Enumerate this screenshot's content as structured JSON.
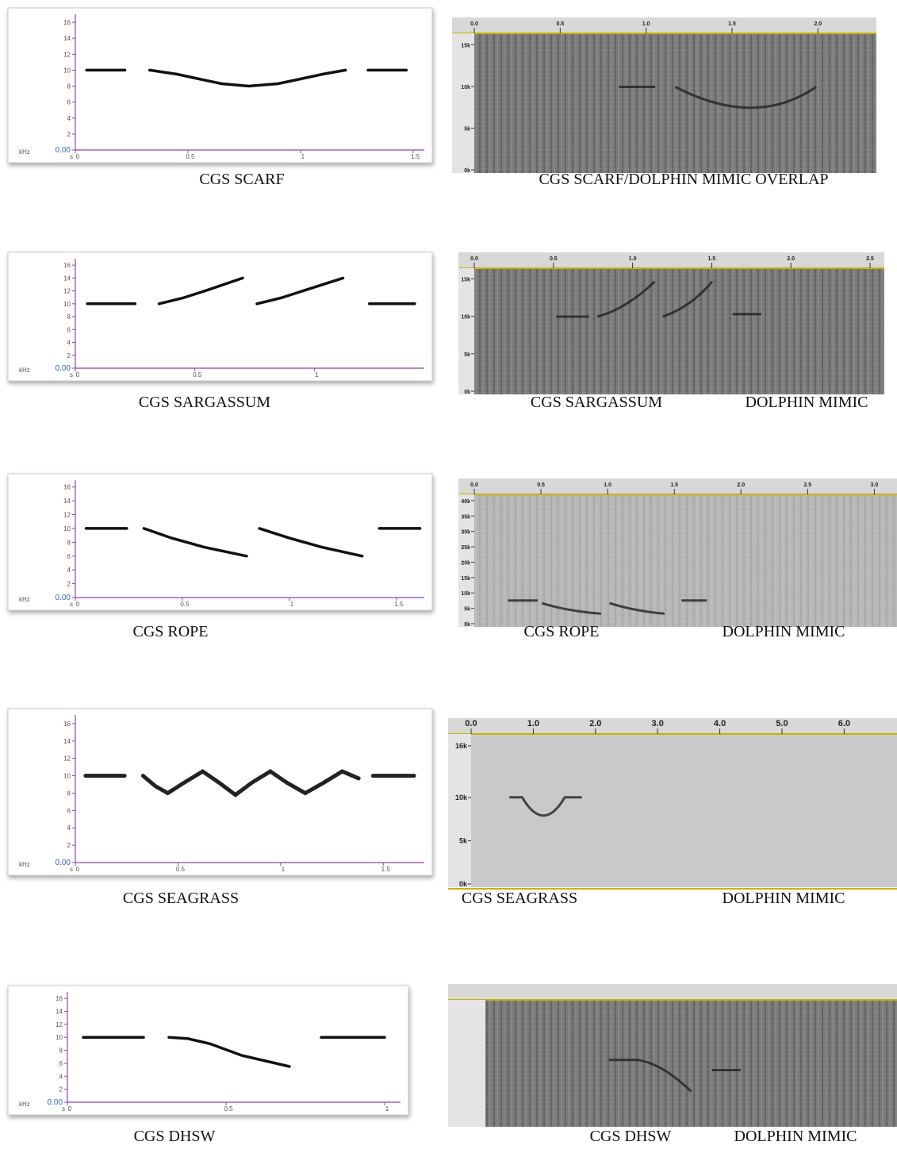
{
  "chart_data": [
    {
      "type": "line",
      "caption": "CGS SCARF",
      "ylabel": "kHz",
      "xlabel": "s",
      "color": "#111",
      "x": [
        0.05,
        0.22,
        0.25,
        0.33,
        0.45,
        0.55,
        0.65,
        0.77,
        0.9,
        1.0,
        1.1,
        1.2,
        1.25,
        1.3,
        1.47
      ],
      "values": [
        10,
        10,
        null,
        10,
        9.5,
        8.9,
        8.3,
        8.0,
        8.3,
        8.9,
        9.5,
        10,
        null,
        10,
        10
      ],
      "xlim": [
        0,
        1.55
      ],
      "ylim": [
        0,
        17
      ],
      "xticks": [
        0,
        0.5,
        1,
        1.5
      ],
      "yticks": [
        {
          "value": 0,
          "label": "0.00"
        },
        2,
        4,
        6,
        8,
        10,
        12,
        14,
        16
      ]
    },
    {
      "type": "spectrogram",
      "captions": [
        "CGS SCARF/DOLPHIN MIMIC OVERLAP"
      ],
      "xlim": [
        0,
        2.34
      ],
      "ylim": [
        0,
        16
      ],
      "xticks": [
        {
          "value": 0,
          "label": "0.0"
        },
        0.5,
        {
          "value": 1,
          "label": "1.0"
        },
        1.5,
        {
          "value": 2,
          "label": "2.0"
        }
      ],
      "yticks": [
        {
          "value": 0,
          "label": "0k"
        },
        {
          "value": 5,
          "label": "5k"
        },
        {
          "value": 10,
          "label": "10k"
        },
        {
          "value": 15,
          "label": "15k"
        }
      ]
    },
    {
      "type": "line",
      "caption": "CGS SARGASSUM",
      "ylabel": "kHz",
      "xlabel": "s",
      "color": "#111",
      "x": [
        0.05,
        0.25,
        0.3,
        0.35,
        0.45,
        0.55,
        0.7,
        0.73,
        0.76,
        0.86,
        0.96,
        1.12,
        1.18,
        1.23,
        1.42
      ],
      "values": [
        10,
        10,
        null,
        10,
        10.9,
        12.1,
        14,
        null,
        10,
        10.9,
        12.1,
        14,
        null,
        10,
        10
      ],
      "xlim": [
        0,
        1.46
      ],
      "ylim": [
        0,
        17
      ],
      "xticks": [
        0,
        0.5,
        1
      ],
      "yticks": [
        {
          "value": 0,
          "label": "0.00"
        },
        2,
        4,
        6,
        8,
        10,
        12,
        14,
        16
      ]
    },
    {
      "type": "spectrogram",
      "captions": [
        "CGS SARGASSUM",
        "DOLPHIN MIMIC"
      ],
      "xlim": [
        0,
        2.59
      ],
      "ylim": [
        0,
        16
      ],
      "xticks": [
        {
          "value": 0,
          "label": "0.0"
        },
        0.5,
        {
          "value": 1,
          "label": "1.0"
        },
        1.5,
        {
          "value": 2,
          "label": "2.0"
        },
        2.5
      ],
      "yticks": [
        {
          "value": 0,
          "label": "0k"
        },
        {
          "value": 5,
          "label": "5k"
        },
        {
          "value": 10,
          "label": "10k"
        },
        {
          "value": 15,
          "label": "15k"
        }
      ]
    },
    {
      "type": "line",
      "caption": "CGS ROPE",
      "ylabel": "kHz",
      "xlabel": "s",
      "color": "#111",
      "x": [
        0.05,
        0.24,
        0.28,
        0.32,
        0.45,
        0.6,
        0.8,
        0.83,
        0.86,
        1.0,
        1.15,
        1.34,
        1.38,
        1.42,
        1.61
      ],
      "values": [
        10,
        10,
        null,
        10,
        8.6,
        7.3,
        6,
        null,
        10,
        8.6,
        7.3,
        6,
        null,
        10,
        10
      ],
      "xlim": [
        0,
        1.63
      ],
      "ylim": [
        0,
        17
      ],
      "xticks": [
        0,
        0.5,
        1,
        1.5
      ],
      "yticks": [
        {
          "value": 0,
          "label": "0.00"
        },
        2,
        4,
        6,
        8,
        10,
        12,
        14,
        16
      ]
    },
    {
      "type": "spectrogram",
      "captions": [
        "CGS ROPE",
        "DOLPHIN MIMIC"
      ],
      "xlim": [
        0,
        3.17
      ],
      "ylim": [
        0,
        41
      ],
      "xticks": [
        {
          "value": 0,
          "label": "0.0"
        },
        0.5,
        {
          "value": 1,
          "label": "1.0"
        },
        1.5,
        {
          "value": 2,
          "label": "2.0"
        },
        2.5,
        {
          "value": 3,
          "label": "3.0"
        }
      ],
      "yticks": [
        {
          "value": 0,
          "label": "0k"
        },
        {
          "value": 5,
          "label": "5k"
        },
        {
          "value": 10,
          "label": "10k"
        },
        {
          "value": 15,
          "label": "15k"
        },
        {
          "value": 20,
          "label": "20k"
        },
        {
          "value": 25,
          "label": "25k"
        },
        {
          "value": 30,
          "label": "30k"
        },
        {
          "value": 35,
          "label": "35k"
        },
        {
          "value": 40,
          "label": "40k"
        }
      ]
    },
    {
      "type": "line",
      "caption": "CGS SEAGRASS",
      "ylabel": "kHz",
      "xlabel": "s",
      "color": "#222",
      "x": [
        0.05,
        0.24,
        0.28,
        0.33,
        0.39,
        0.45,
        0.53,
        0.62,
        0.7,
        0.78,
        0.86,
        0.95,
        1.03,
        1.12,
        1.21,
        1.3,
        1.38,
        1.41,
        1.45,
        1.65
      ],
      "values": [
        10,
        10,
        null,
        10,
        8.8,
        8.0,
        9.2,
        10.5,
        9.2,
        7.8,
        9.2,
        10.5,
        9.2,
        8.0,
        9.2,
        10.5,
        9.7,
        null,
        10,
        10
      ],
      "xlim": [
        0,
        1.7
      ],
      "ylim": [
        0,
        17
      ],
      "xticks": [
        0,
        0.5,
        1,
        1.5
      ],
      "yticks": [
        {
          "value": 0,
          "label": "0.00"
        },
        2,
        4,
        6,
        8,
        10,
        12,
        14,
        16
      ]
    },
    {
      "type": "spectrogram",
      "captions": [
        "CGS SEAGRASS",
        "DOLPHIN MIMIC"
      ],
      "xlim": [
        0,
        6.85
      ],
      "ylim": [
        0,
        17
      ],
      "xticks": [
        {
          "value": 0,
          "label": "0.0"
        },
        {
          "value": 1,
          "label": "1.0"
        },
        {
          "value": 2,
          "label": "2.0"
        },
        {
          "value": 3,
          "label": "3.0"
        },
        {
          "value": 4,
          "label": "4.0"
        },
        {
          "value": 5,
          "label": "5.0"
        },
        {
          "value": 6,
          "label": "6.0"
        }
      ],
      "yticks": [
        {
          "value": 0,
          "label": "0k"
        },
        {
          "value": 5,
          "label": "5k"
        },
        {
          "value": 10,
          "label": "10k"
        },
        {
          "value": 16,
          "label": "16k"
        }
      ]
    },
    {
      "type": "line",
      "caption": "CGS DHSW",
      "ylabel": "kHz",
      "xlabel": "s",
      "color": "#111",
      "x": [
        0.05,
        0.24,
        0.28,
        0.32,
        0.38,
        0.45,
        0.55,
        0.7,
        0.75,
        0.8,
        1.0
      ],
      "values": [
        10,
        10,
        null,
        10,
        9.8,
        9,
        7.2,
        5.5,
        null,
        10,
        10
      ],
      "xlim": [
        0,
        1.05
      ],
      "ylim": [
        0,
        17
      ],
      "xticks": [
        0,
        0.5,
        1
      ],
      "yticks": [
        {
          "value": 0,
          "label": "0.00"
        },
        2,
        4,
        6,
        8,
        10,
        12,
        14,
        16
      ]
    },
    {
      "type": "spectrogram",
      "captions": [
        "CGS DHSW",
        "DOLPHIN MIMIC"
      ],
      "xticks": [],
      "yticks": []
    }
  ]
}
